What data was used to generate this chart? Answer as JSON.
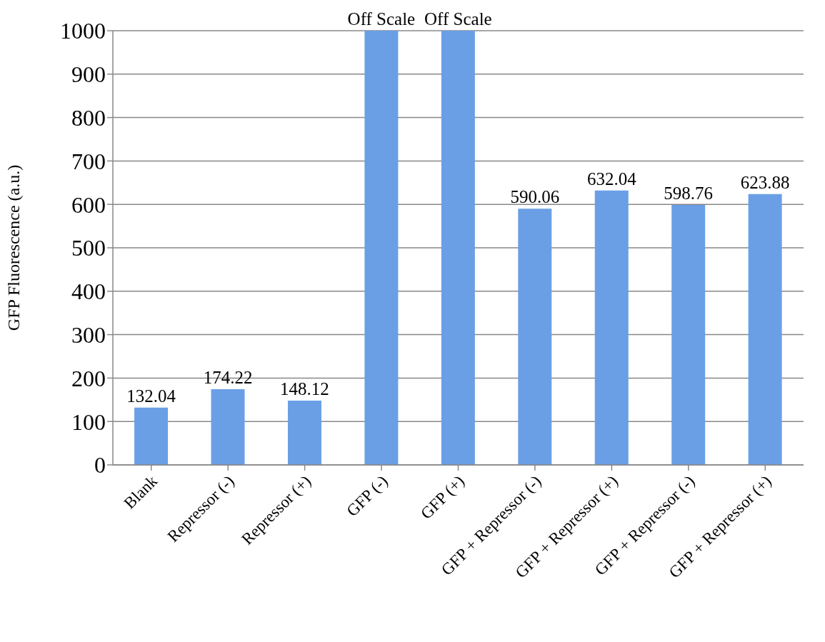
{
  "chart_data": {
    "type": "bar",
    "ylabel": "GFP Fluorescence (a.u.)",
    "categories": [
      "Blank",
      "Repressor (-)",
      "Repressor (+)",
      "GFP (-)",
      "GFP (+)",
      "GFP + Repressor (-)",
      "GFP + Repressor (+)",
      "GFP + Repressor (-)",
      "GFP + Repressor (+)"
    ],
    "values": [
      132.04,
      174.22,
      148.12,
      1000,
      1000,
      590.06,
      632.04,
      598.76,
      623.88
    ],
    "value_labels": [
      "132.04",
      "174.22",
      "148.12",
      "Off Scale",
      "Off Scale",
      "590.06",
      "632.04",
      "598.76",
      "623.88"
    ],
    "color": "#6a9fe6",
    "ylim": [
      0,
      1000
    ],
    "yticks": [
      0,
      100,
      200,
      300,
      400,
      500,
      600,
      700,
      800,
      900,
      1000
    ],
    "grid": "y"
  }
}
